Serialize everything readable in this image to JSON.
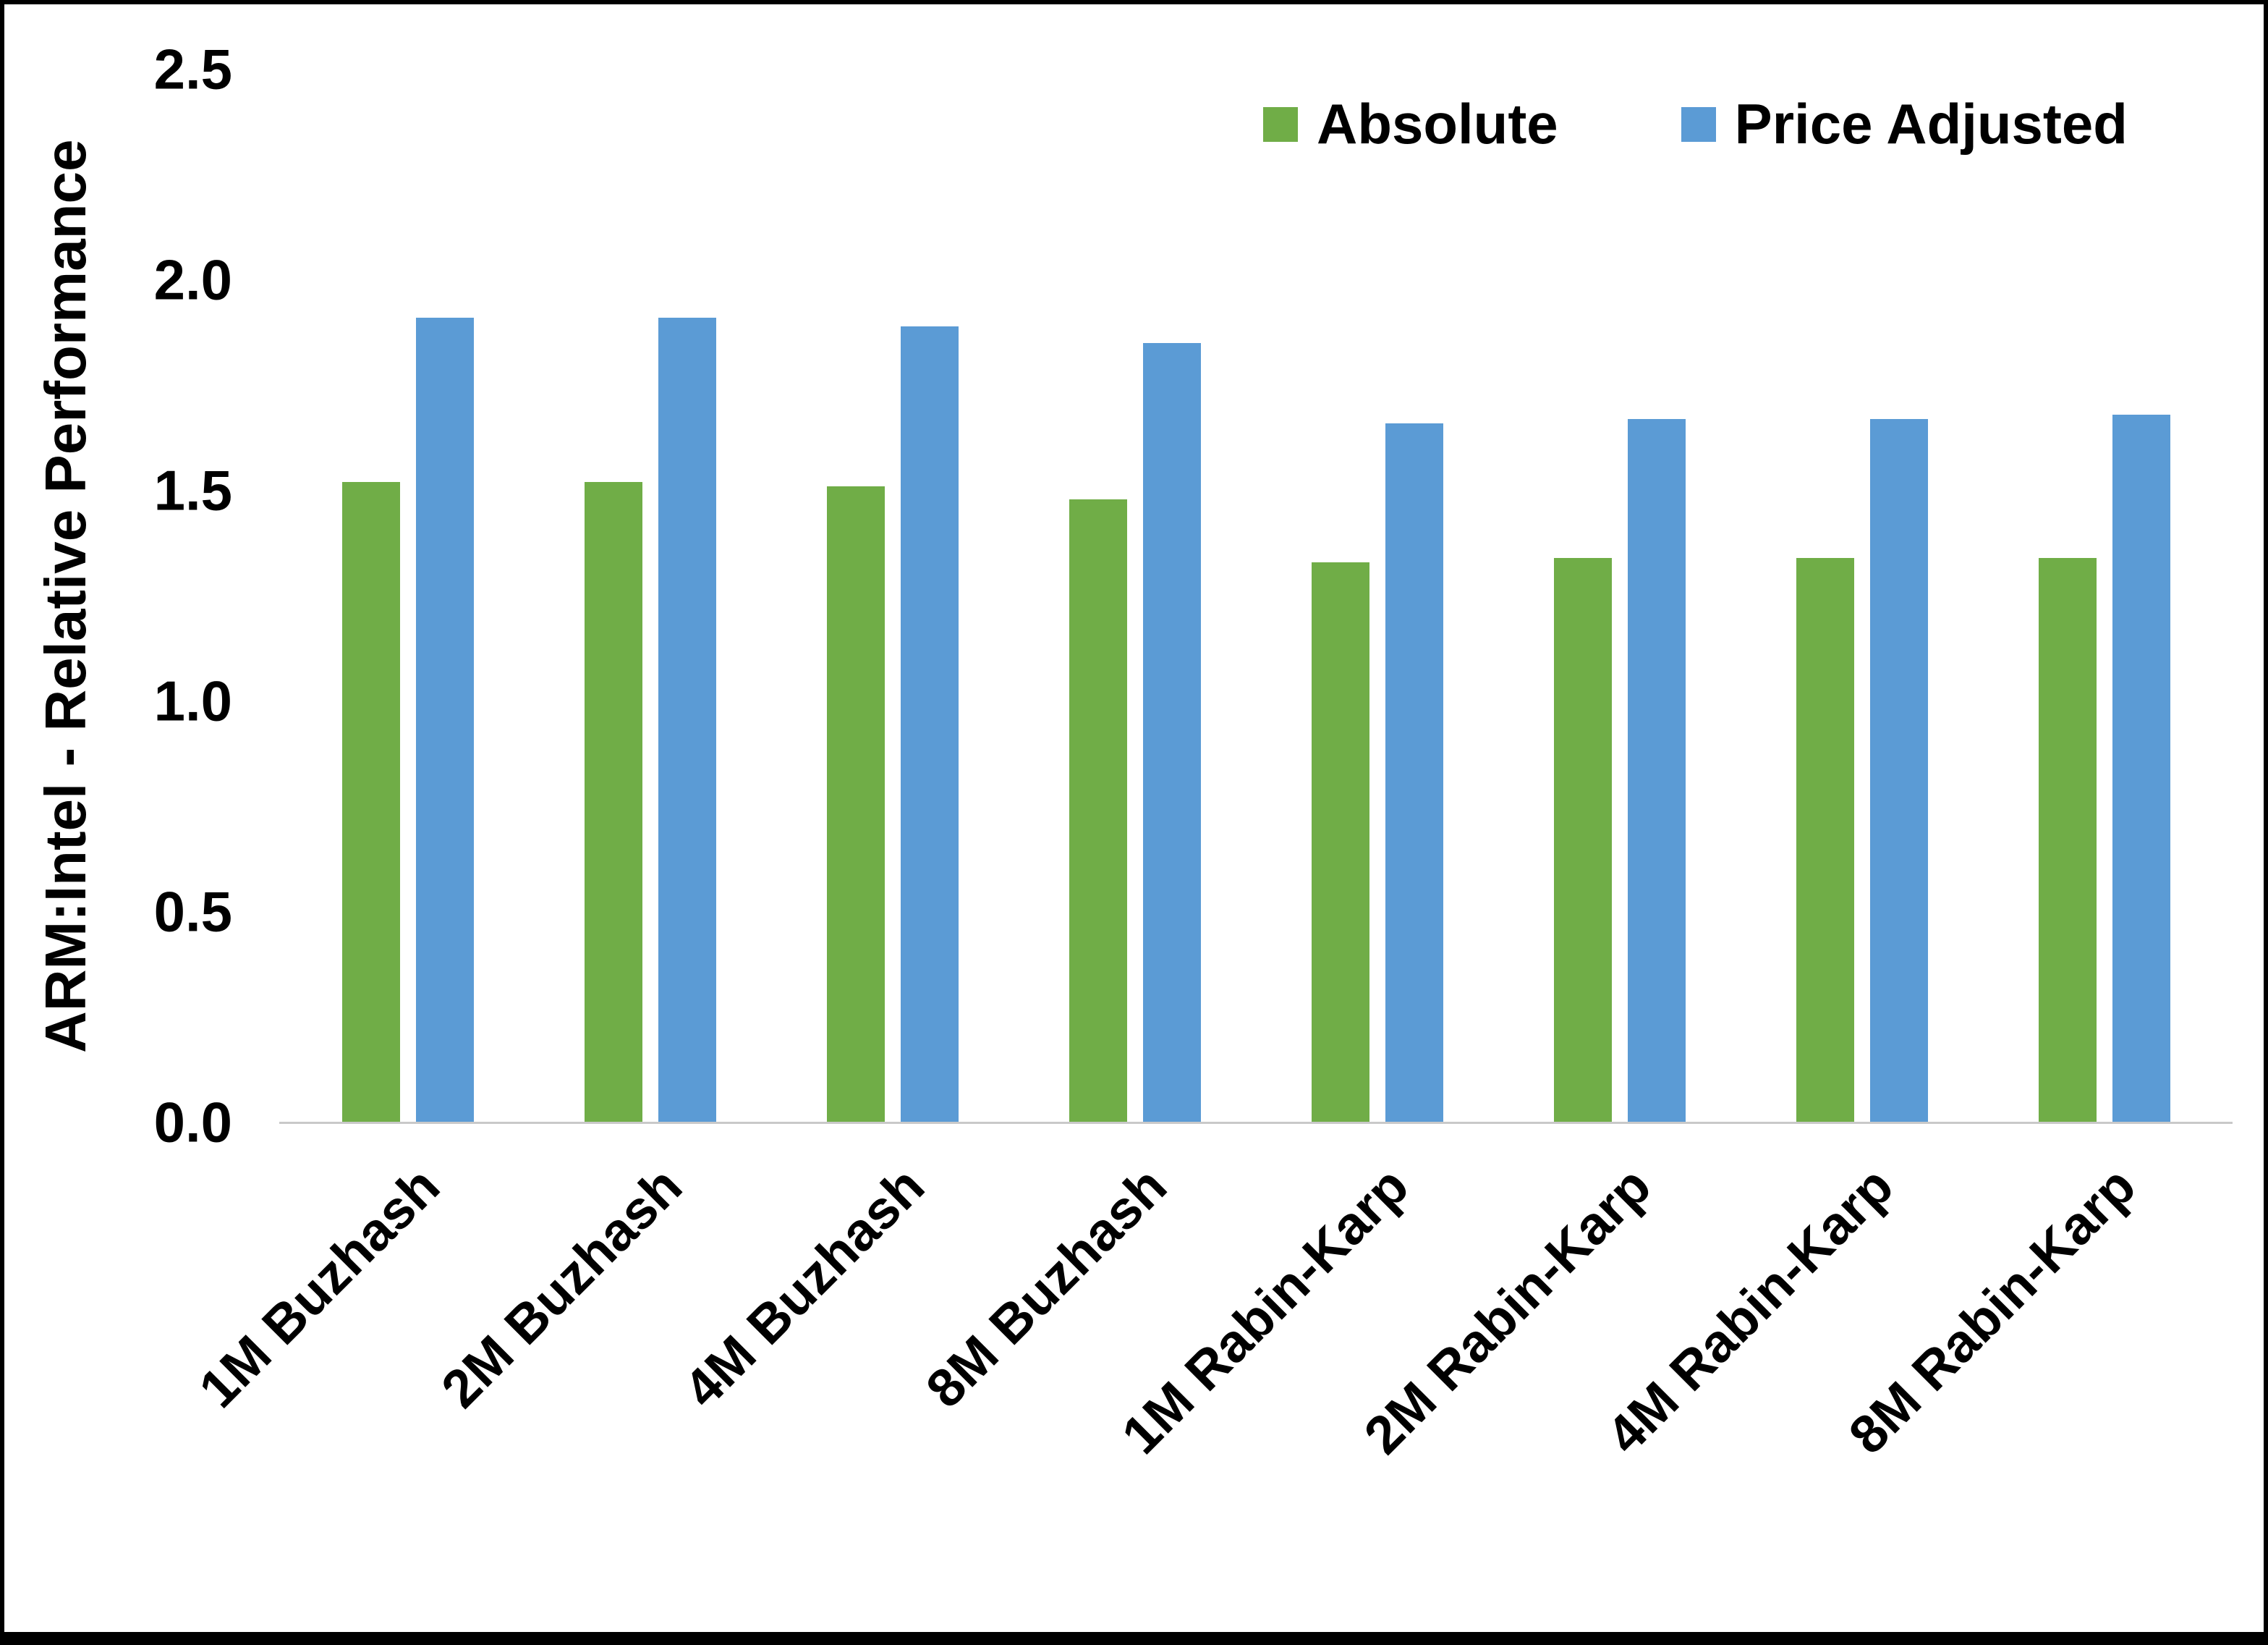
{
  "chart_data": {
    "type": "bar",
    "title": "",
    "xlabel": "",
    "ylabel": "ARM:Intel - Relative Performance",
    "ylim": [
      0,
      2.5
    ],
    "yticks": [
      "0.0",
      "0.5",
      "1.0",
      "1.5",
      "2.0",
      "2.5"
    ],
    "grid": false,
    "legend_position": "top-right",
    "categories": [
      "1M Buzhash",
      "2M Buzhash",
      "4M Buzhash",
      "8M Buzhash",
      "1M Rabin-Karp",
      "2M Rabin-Karp",
      "4M Rabin-Karp",
      "8M Rabin-Karp"
    ],
    "series": [
      {
        "name": "Absolute",
        "color": "#70AD47",
        "values": [
          1.52,
          1.52,
          1.51,
          1.48,
          1.33,
          1.34,
          1.34,
          1.34
        ]
      },
      {
        "name": "Price Adjusted",
        "color": "#5B9BD5",
        "values": [
          1.91,
          1.91,
          1.89,
          1.85,
          1.66,
          1.67,
          1.67,
          1.68
        ]
      }
    ],
    "colors": {
      "axis_line": "#C9C9C9",
      "text": "#000000",
      "background": "#FFFFFF",
      "frame_border": "#000000"
    }
  }
}
